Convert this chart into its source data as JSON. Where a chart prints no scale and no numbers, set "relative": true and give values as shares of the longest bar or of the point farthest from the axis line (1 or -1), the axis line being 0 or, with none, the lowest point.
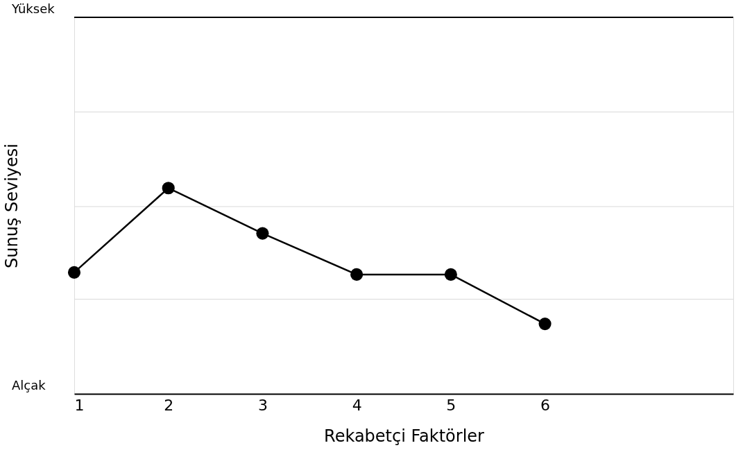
{
  "chart_data": {
    "type": "line",
    "xlabel": "Rekabetçi Faktörler",
    "ylabel": "Sunuş Seviyesi",
    "relative": true,
    "annotations": [
      "Yüksek",
      "Alçak"
    ],
    "x": [
      1,
      2,
      3,
      4,
      5,
      6
    ],
    "series": [
      {
        "color": "#000000",
        "values": [
          0.59,
          1,
          0.78,
          0.58,
          0.58,
          0.34
        ]
      }
    ],
    "xlim": [
      1,
      8
    ],
    "xticks": [
      1,
      2,
      3,
      4,
      5,
      6
    ],
    "ref_lines": [
      {
        "axis": "y",
        "value": 0.46,
        "color": "#d9d9d9"
      },
      {
        "axis": "y",
        "value": 0.91,
        "color": "#d9d9d9"
      },
      {
        "axis": "y",
        "value": 1.37,
        "color": "#d9d9d9"
      },
      {
        "axis": "y",
        "value": 1.83,
        "color": "#000000"
      }
    ],
    "marker": "circle",
    "line_style": "solid"
  }
}
